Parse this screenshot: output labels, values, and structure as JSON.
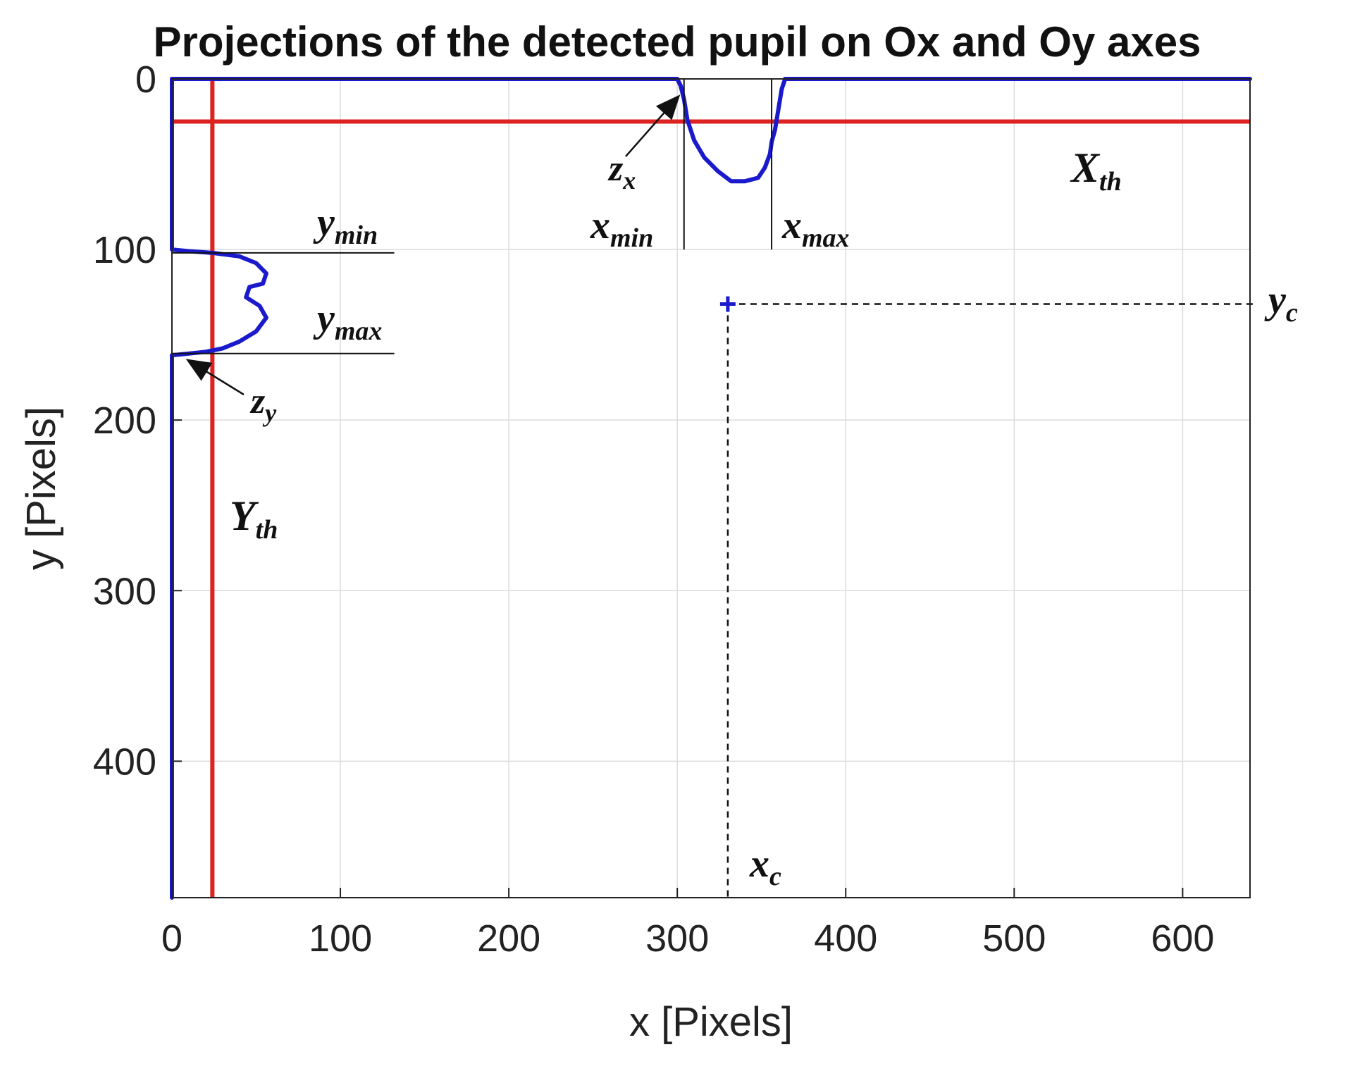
{
  "chart_data": {
    "type": "line",
    "title": "Projections of the detected pupil on Ox and Oy axes",
    "xlabel": "x [Pixels]",
    "ylabel": "y [Pixels]",
    "xlim": [
      0,
      640
    ],
    "ylim": [
      480,
      0
    ],
    "y_axis_reversed": true,
    "grid": true,
    "x_ticks": [
      0,
      100,
      200,
      300,
      400,
      500,
      600
    ],
    "y_ticks": [
      0,
      100,
      200,
      300,
      400
    ],
    "series": [
      {
        "role": "x-projection",
        "color": "#1a1acc",
        "points": [
          [
            0,
            0
          ],
          [
            300,
            0
          ],
          [
            302,
            4
          ],
          [
            304,
            12
          ],
          [
            306,
            24
          ],
          [
            310,
            36
          ],
          [
            316,
            46
          ],
          [
            324,
            54
          ],
          [
            332,
            60
          ],
          [
            340,
            60
          ],
          [
            348,
            58
          ],
          [
            352,
            52
          ],
          [
            355,
            44
          ],
          [
            356,
            37
          ],
          [
            358,
            30
          ],
          [
            360,
            18
          ],
          [
            362,
            6
          ],
          [
            364,
            0
          ],
          [
            640,
            0
          ]
        ]
      },
      {
        "role": "y-projection",
        "color": "#1a1acc",
        "points": [
          [
            0,
            480
          ],
          [
            0,
            162
          ],
          [
            10,
            161
          ],
          [
            20,
            160
          ],
          [
            30,
            158
          ],
          [
            40,
            154
          ],
          [
            50,
            148
          ],
          [
            56,
            140
          ],
          [
            52,
            133
          ],
          [
            44,
            128
          ],
          [
            46,
            122
          ],
          [
            54,
            120
          ],
          [
            56,
            114
          ],
          [
            50,
            108
          ],
          [
            40,
            104
          ],
          [
            24,
            102
          ],
          [
            10,
            101
          ],
          [
            0,
            100
          ],
          [
            0,
            0
          ]
        ]
      },
      {
        "role": "x-threshold",
        "color": "#dd2222",
        "y": 25
      },
      {
        "role": "y-threshold",
        "color": "#dd2222",
        "x": 24
      }
    ],
    "center_point": {
      "x": 330,
      "y": 132
    },
    "annotations": {
      "x_min": 304,
      "x_max": 356,
      "y_min": 102,
      "y_max": 161
    }
  },
  "labels": {
    "x_th": "X",
    "x_th_sub": "th",
    "y_th": "Y",
    "y_th_sub": "th",
    "x_min": "x",
    "x_min_sub": "min",
    "x_max": "x",
    "x_max_sub": "max",
    "y_min": "y",
    "y_min_sub": "min",
    "y_max": "y",
    "y_max_sub": "max",
    "z_x": "z",
    "z_x_sub": "x",
    "z_y": "z",
    "z_y_sub": "y",
    "x_c": "x",
    "x_c_sub": "c",
    "y_c": "y",
    "y_c_sub": "c"
  }
}
